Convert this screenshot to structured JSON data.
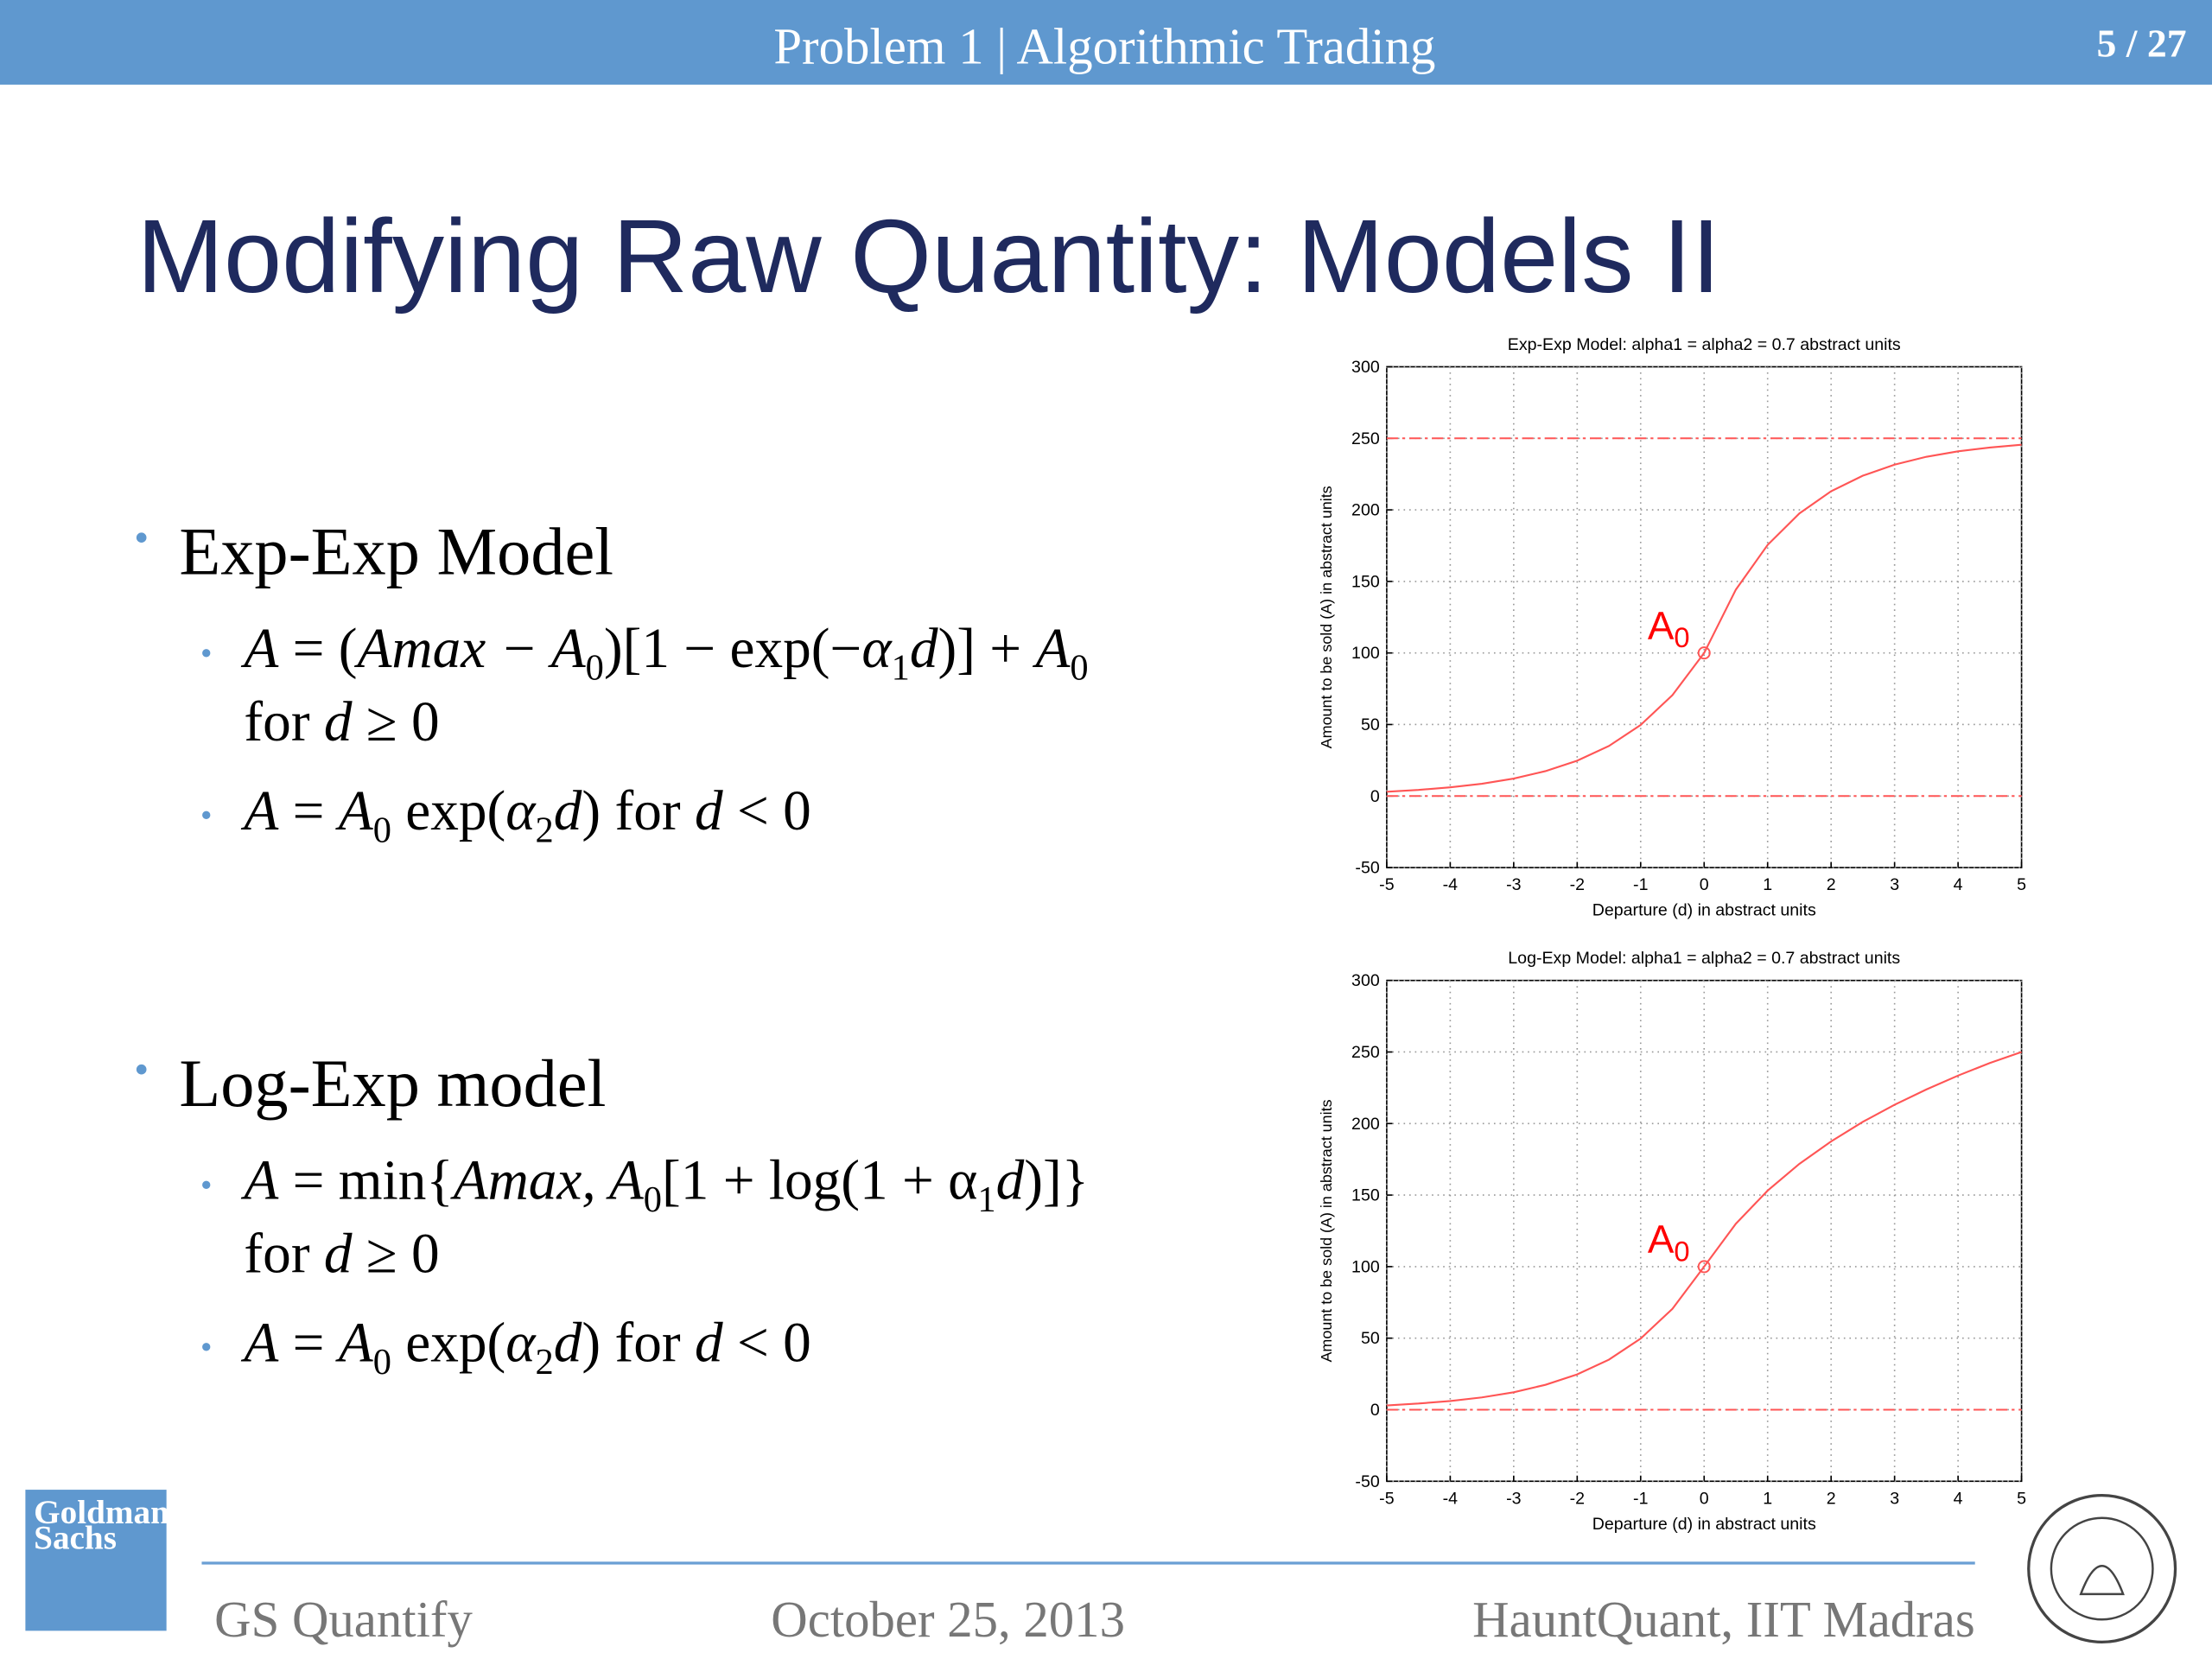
{
  "header": {
    "title": "Problem 1 | Algorithmic Trading",
    "page": "5 / 27"
  },
  "title": "Modifying Raw Quantity: Models II",
  "bullets": [
    {
      "text": "Exp-Exp Model",
      "items": [
        {
          "lines": [
            [
              {
                "text": "A",
                "italic": true
              },
              {
                "text": " = ("
              },
              {
                "text": "Amax − A",
                "italic": true
              },
              {
                "sub": "0"
              },
              {
                "text": ")[1 − exp(−"
              },
              {
                "text": "α",
                "italic": true
              },
              {
                "sub": "1"
              },
              {
                "text": "d",
                "italic": true
              },
              {
                "text": ")] + "
              },
              {
                "text": "A",
                "italic": true
              },
              {
                "sub": "0"
              }
            ],
            [
              {
                "text": "for "
              },
              {
                "text": "d",
                "italic": true
              },
              {
                "text": " ≥ 0"
              }
            ]
          ]
        },
        {
          "lines": [
            [
              {
                "text": "A",
                "italic": true
              },
              {
                "text": " = "
              },
              {
                "text": "A",
                "italic": true
              },
              {
                "sub": "0"
              },
              {
                "text": " exp("
              },
              {
                "text": "α",
                "italic": true
              },
              {
                "sub": "2"
              },
              {
                "text": "d",
                "italic": true
              },
              {
                "text": ") for "
              },
              {
                "text": "d",
                "italic": true
              },
              {
                "text": " < 0"
              }
            ]
          ]
        }
      ]
    },
    {
      "text": "Log-Exp model",
      "items": [
        {
          "lines": [
            [
              {
                "text": "A",
                "italic": true
              },
              {
                "text": " = min{"
              },
              {
                "text": "Amax, A",
                "italic": true
              },
              {
                "sub": "0"
              },
              {
                "text": "[1 + log(1 + α"
              },
              {
                "sub": "1"
              },
              {
                "text": "d",
                "italic": true
              },
              {
                "text": ")]}"
              }
            ],
            [
              {
                "text": "for "
              },
              {
                "text": "d",
                "italic": true
              },
              {
                "text": " ≥ 0"
              }
            ]
          ]
        },
        {
          "lines": [
            [
              {
                "text": "A",
                "italic": true
              },
              {
                "text": " = "
              },
              {
                "text": "A",
                "italic": true
              },
              {
                "sub": "0"
              },
              {
                "text": " exp("
              },
              {
                "text": "α",
                "italic": true
              },
              {
                "sub": "2"
              },
              {
                "text": "d",
                "italic": true
              },
              {
                "text": ") for "
              },
              {
                "text": "d",
                "italic": true
              },
              {
                "text": " < 0"
              }
            ]
          ]
        }
      ]
    }
  ],
  "chart_data": [
    {
      "type": "line",
      "title": "Exp-Exp Model: alpha1 = alpha2 = 0.7 abstract units",
      "xlabel": "Departure (d) in abstract units",
      "ylabel": "Amount to be sold (A) in abstract units",
      "x": [
        -5,
        -4.5,
        -4,
        -3.5,
        -3,
        -2.5,
        -2,
        -1.5,
        -1,
        -0.5,
        0,
        0.5,
        1,
        1.5,
        2,
        2.5,
        3,
        3.5,
        4,
        4.5,
        5
      ],
      "series": [
        {
          "color": "#ff5555",
          "values": [
            3.0,
            4.3,
            6.1,
            8.6,
            12.2,
            17.4,
            24.7,
            35.0,
            49.7,
            70.5,
            100,
            144.3,
            175.5,
            197.5,
            213.0,
            223.9,
            231.6,
            237.1,
            240.9,
            243.6,
            245.5
          ]
        }
      ],
      "xlim": [
        -5,
        5
      ],
      "ylim": [
        -50,
        300
      ],
      "xticks": [
        -5,
        -4,
        -3,
        -2,
        -1,
        0,
        1,
        2,
        3,
        4,
        5
      ],
      "yticks": [
        -50,
        0,
        50,
        100,
        150,
        200,
        250,
        300
      ],
      "grid": true,
      "reference_lines": [
        250,
        0
      ],
      "reference_color": "#ff5555",
      "annotations": [
        {
          "text": "A",
          "subscript": "0",
          "x": 0,
          "y": 100
        }
      ]
    },
    {
      "type": "line",
      "title": "Log-Exp Model: alpha1 = alpha2 = 0.7 abstract units",
      "xlabel": "Departure (d) in abstract units",
      "ylabel": "Amount to be sold (A) in abstract units",
      "x": [
        -5,
        -4.5,
        -4,
        -3.5,
        -3,
        -2.5,
        -2,
        -1.5,
        -1,
        -0.5,
        0,
        0.5,
        1,
        1.5,
        2,
        2.5,
        3,
        3.5,
        4,
        4.5,
        5
      ],
      "series": [
        {
          "color": "#ff5555",
          "values": [
            3.0,
            4.3,
            6.1,
            8.6,
            12.2,
            17.4,
            24.7,
            35.0,
            49.7,
            70.5,
            100,
            130.0,
            153.1,
            171.8,
            187.5,
            201.2,
            213.1,
            223.8,
            233.5,
            242.3,
            250
          ]
        }
      ],
      "xlim": [
        -5,
        5
      ],
      "ylim": [
        -50,
        300
      ],
      "xticks": [
        -5,
        -4,
        -3,
        -2,
        -1,
        0,
        1,
        2,
        3,
        4,
        5
      ],
      "yticks": [
        -50,
        0,
        50,
        100,
        150,
        200,
        250,
        300
      ],
      "grid": true,
      "reference_lines": [
        0
      ],
      "reference_color": "#ff5555",
      "annotations": [
        {
          "text": "A",
          "subscript": "0",
          "x": 0,
          "y": 100
        }
      ]
    }
  ],
  "logo": {
    "lines": [
      "Goldman",
      "Sachs"
    ]
  },
  "footer": {
    "left": "GS Quantify",
    "center": "October 25, 2013",
    "right": "HauntQuant, IIT Madras"
  }
}
